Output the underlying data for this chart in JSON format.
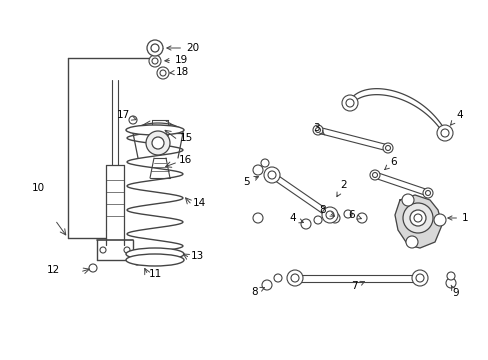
{
  "bg_color": "#ffffff",
  "lc": "#444444",
  "label_color": "#000000",
  "fig_width": 4.89,
  "fig_height": 3.6,
  "dpi": 100,
  "xlim": [
    0,
    489
  ],
  "ylim": [
    0,
    360
  ]
}
